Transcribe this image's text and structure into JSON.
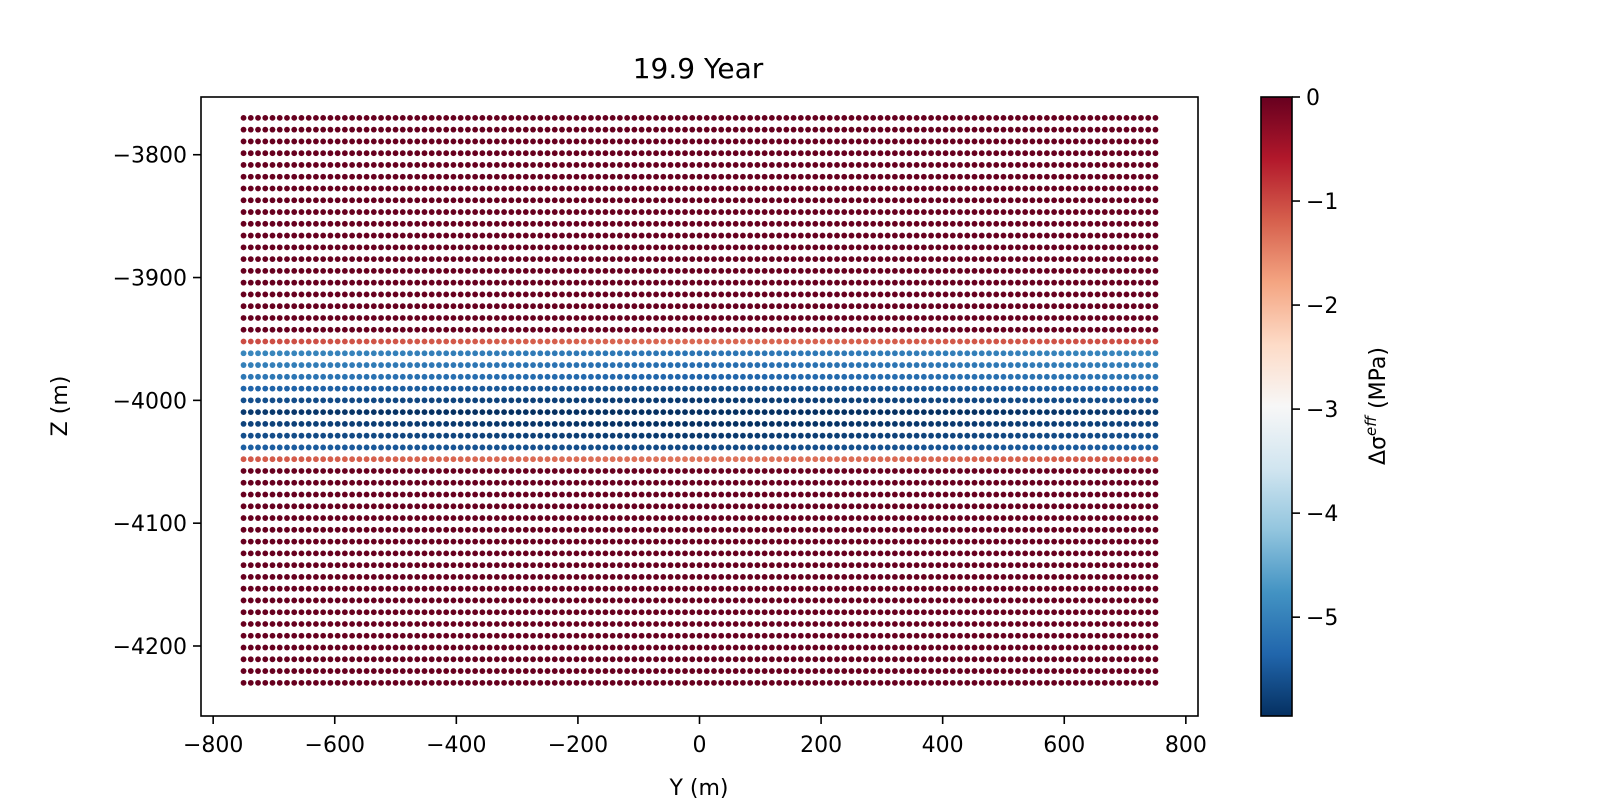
{
  "chart_data": {
    "type": "scatter",
    "title": "19.9 Year",
    "xlabel": "Y (m)",
    "ylabel": "Z (m)",
    "xlim": [
      -820,
      820
    ],
    "ylim": [
      -4257,
      -3753
    ],
    "xticks": [
      -800,
      -600,
      -400,
      -200,
      0,
      200,
      400,
      600,
      800
    ],
    "xtick_labels": [
      "−800",
      "−600",
      "−400",
      "−200",
      "0",
      "200",
      "400",
      "600",
      "800"
    ],
    "yticks": [
      -3800,
      -3900,
      -4000,
      -4100,
      -4200
    ],
    "ytick_labels": [
      "−3800",
      "−3900",
      "−4000",
      "−4100",
      "−4200"
    ],
    "grid": false,
    "points": {
      "x_range": [
        -750,
        750
      ],
      "x_count": 127,
      "z_range": [
        -4230,
        -3770
      ],
      "z_count": 49,
      "value_profile": [
        {
          "z": -3770,
          "value": 0
        },
        {
          "z": -3950,
          "value": 0
        },
        {
          "z": -3960,
          "value": -4.9
        },
        {
          "z": -3980,
          "value": -5.1
        },
        {
          "z": -4000,
          "value": -5.6
        },
        {
          "z": -4010,
          "value": -5.85
        },
        {
          "z": -4030,
          "value": -5.6
        },
        {
          "z": -4040,
          "value": -5.4
        },
        {
          "z": -4050,
          "value": 0
        },
        {
          "z": -4230,
          "value": 0
        }
      ],
      "center_deepening": 0.25
    },
    "colorbar": {
      "label": "Δσ",
      "label_sup": "eff",
      "label_unit": " (MPa)",
      "cmap": "RdBu",
      "vmin": -5.95,
      "vmax": 0,
      "ticks": [
        0,
        -1,
        -2,
        -3,
        -4,
        -5
      ],
      "tick_labels": [
        "0",
        "−1",
        "−2",
        "−3",
        "−4",
        "−5"
      ],
      "colors": [
        "#053061",
        "#2166ac",
        "#4393c3",
        "#92c5de",
        "#d1e5f0",
        "#f7f7f7",
        "#fddbc7",
        "#f4a582",
        "#d6604d",
        "#b2182b",
        "#67001f"
      ]
    }
  }
}
